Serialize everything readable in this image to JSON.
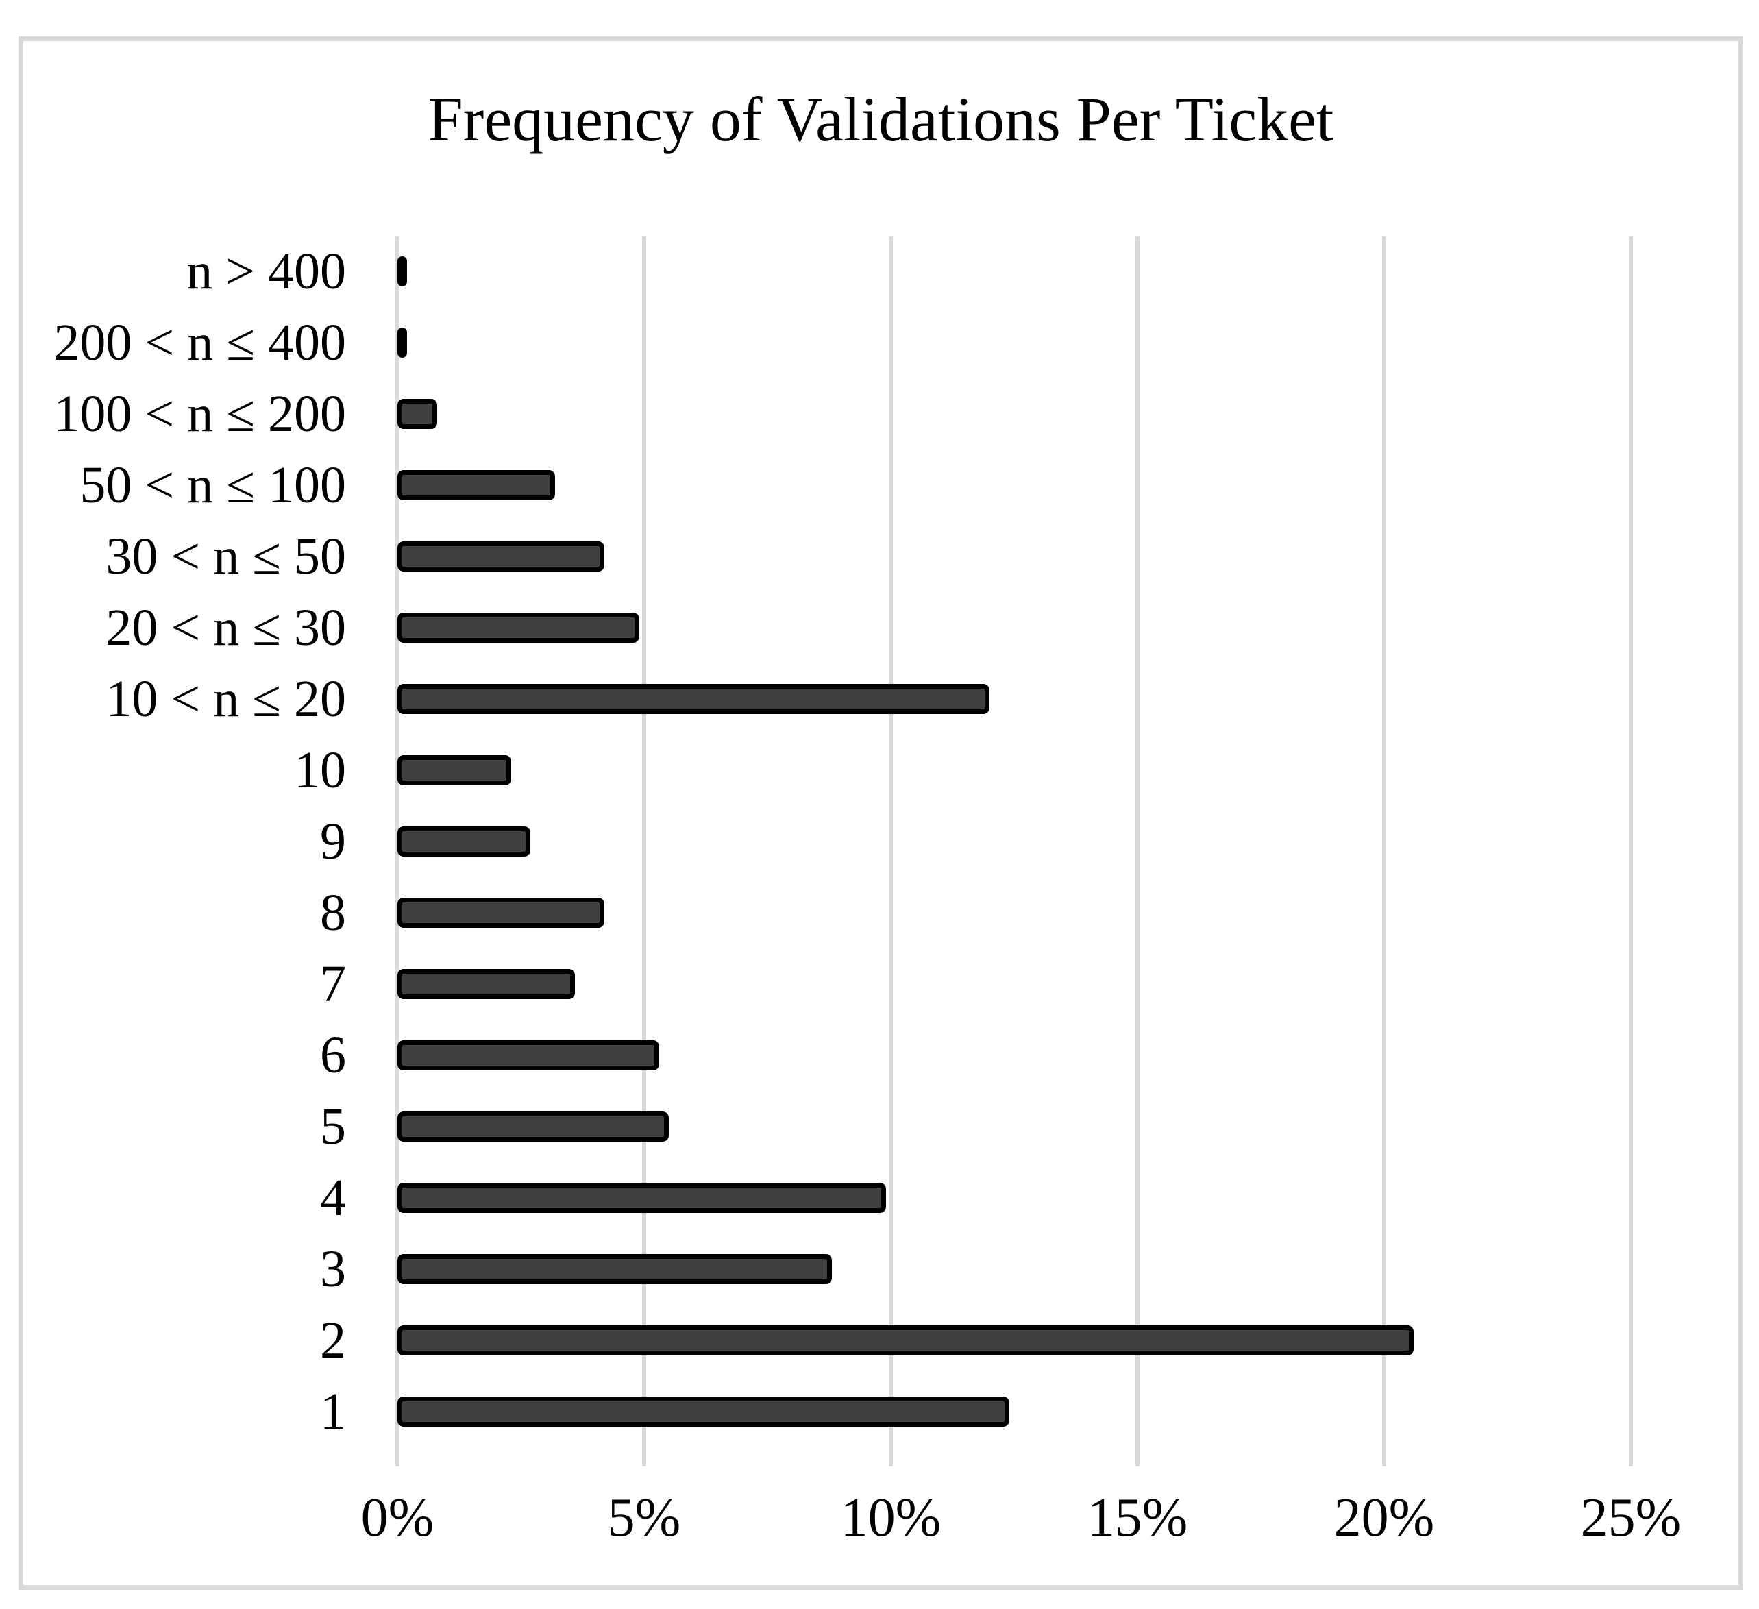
{
  "chart_data": {
    "type": "bar",
    "orientation": "horizontal",
    "title": "Frequency of Validations Per Ticket",
    "categories": [
      "n > 400",
      "200 < n ≤ 400",
      "100 < n ≤ 200",
      "50 < n ≤ 100",
      "30 < n ≤ 50",
      "20 < n ≤ 30",
      "10 < n ≤ 20",
      "10",
      "9",
      "8",
      "7",
      "6",
      "5",
      "4",
      "3",
      "2",
      "1"
    ],
    "values_percent": [
      0.1,
      0.15,
      0.8,
      3.2,
      4.2,
      4.9,
      12.0,
      2.3,
      2.7,
      4.2,
      3.6,
      5.3,
      5.5,
      9.9,
      8.8,
      20.6,
      12.4
    ],
    "x_tick_labels": [
      "0%",
      "5%",
      "10%",
      "15%",
      "20%",
      "25%"
    ],
    "x_tick_values": [
      0,
      5,
      10,
      15,
      20,
      25
    ],
    "xlim": [
      0,
      25
    ],
    "ylabel": "",
    "xlabel": "",
    "legend_position": "none",
    "grid": "vertical-only",
    "bar_fill_color": "#404040",
    "bar_border_color": "#000000",
    "gridline_color": "#d9d9d9",
    "frame_border_color": "#d9d9d9",
    "text_color": "#000000",
    "background_color": "#ffffff"
  }
}
